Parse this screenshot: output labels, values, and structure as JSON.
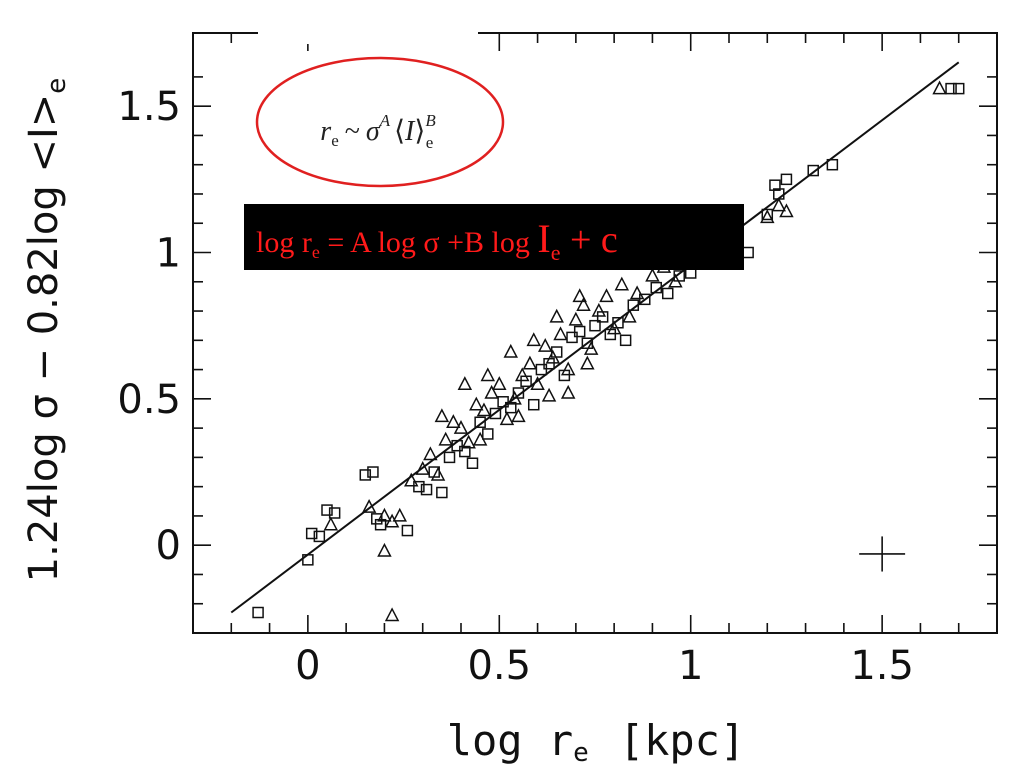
{
  "chart_data": {
    "type": "scatter",
    "title": "",
    "xlabel": "log r",
    "xlabel_sub": "e",
    "xlabel_unit": "[kpc]",
    "ylabel": "1.24log σ − 0.82log <I>",
    "ylabel_sub": "e",
    "xlim": [
      -0.3,
      1.8
    ],
    "ylim": [
      -0.3,
      1.75
    ],
    "grid": false,
    "x_ticks": [
      {
        "value": 0,
        "label": "0"
      },
      {
        "value": 0.5,
        "label": "0.5"
      },
      {
        "value": 1,
        "label": "1"
      },
      {
        "value": 1.5,
        "label": "1.5"
      }
    ],
    "y_ticks": [
      {
        "value": 0,
        "label": "0"
      },
      {
        "value": 0.5,
        "label": "0.5"
      },
      {
        "value": 1,
        "label": "1"
      },
      {
        "value": 1.5,
        "label": "1.5"
      }
    ],
    "fit_line": {
      "x": [
        -0.2,
        1.7
      ],
      "y": [
        -0.23,
        1.65
      ]
    },
    "error_cross": {
      "x": 1.5,
      "y": -0.03,
      "dx": 0.06,
      "dy": 0.06
    },
    "series": [
      {
        "marker": "square",
        "points": [
          [
            -0.13,
            -0.23
          ],
          [
            0.0,
            -0.05
          ],
          [
            0.01,
            0.04
          ],
          [
            0.03,
            0.03
          ],
          [
            0.05,
            0.12
          ],
          [
            0.07,
            0.11
          ],
          [
            0.15,
            0.24
          ],
          [
            0.17,
            0.25
          ],
          [
            0.18,
            0.09
          ],
          [
            0.19,
            0.07
          ],
          [
            0.26,
            0.05
          ],
          [
            0.29,
            0.2
          ],
          [
            0.31,
            0.19
          ],
          [
            0.33,
            0.25
          ],
          [
            0.35,
            0.18
          ],
          [
            0.37,
            0.3
          ],
          [
            0.39,
            0.34
          ],
          [
            0.41,
            0.32
          ],
          [
            0.43,
            0.28
          ],
          [
            0.45,
            0.42
          ],
          [
            0.47,
            0.38
          ],
          [
            0.49,
            0.45
          ],
          [
            0.51,
            0.49
          ],
          [
            0.53,
            0.47
          ],
          [
            0.55,
            0.52
          ],
          [
            0.57,
            0.56
          ],
          [
            0.59,
            0.48
          ],
          [
            0.61,
            0.6
          ],
          [
            0.63,
            0.62
          ],
          [
            0.65,
            0.66
          ],
          [
            0.67,
            0.58
          ],
          [
            0.69,
            0.71
          ],
          [
            0.71,
            0.73
          ],
          [
            0.73,
            0.69
          ],
          [
            0.75,
            0.75
          ],
          [
            0.77,
            0.78
          ],
          [
            0.79,
            0.72
          ],
          [
            0.81,
            0.76
          ],
          [
            0.83,
            0.7
          ],
          [
            0.85,
            0.82
          ],
          [
            0.88,
            0.84
          ],
          [
            0.91,
            0.88
          ],
          [
            0.94,
            0.86
          ],
          [
            0.97,
            0.92
          ],
          [
            1.0,
            0.93
          ],
          [
            1.05,
            0.96
          ],
          [
            1.12,
            0.98
          ],
          [
            1.15,
            1.0
          ],
          [
            1.2,
            1.13
          ],
          [
            1.22,
            1.23
          ],
          [
            1.23,
            1.2
          ],
          [
            1.25,
            1.25
          ],
          [
            1.32,
            1.28
          ],
          [
            1.37,
            1.3
          ],
          [
            1.68,
            1.56
          ],
          [
            1.7,
            1.56
          ]
        ]
      },
      {
        "marker": "triangle",
        "points": [
          [
            0.06,
            0.07
          ],
          [
            0.16,
            0.13
          ],
          [
            0.2,
            0.1
          ],
          [
            0.22,
            0.08
          ],
          [
            0.24,
            0.1
          ],
          [
            0.2,
            -0.02
          ],
          [
            0.22,
            -0.24
          ],
          [
            0.27,
            0.22
          ],
          [
            0.3,
            0.26
          ],
          [
            0.32,
            0.31
          ],
          [
            0.34,
            0.24
          ],
          [
            0.36,
            0.36
          ],
          [
            0.38,
            0.42
          ],
          [
            0.4,
            0.4
          ],
          [
            0.42,
            0.35
          ],
          [
            0.44,
            0.48
          ],
          [
            0.46,
            0.46
          ],
          [
            0.48,
            0.52
          ],
          [
            0.5,
            0.55
          ],
          [
            0.52,
            0.43
          ],
          [
            0.54,
            0.5
          ],
          [
            0.56,
            0.58
          ],
          [
            0.58,
            0.62
          ],
          [
            0.6,
            0.55
          ],
          [
            0.62,
            0.68
          ],
          [
            0.64,
            0.64
          ],
          [
            0.66,
            0.72
          ],
          [
            0.68,
            0.6
          ],
          [
            0.7,
            0.77
          ],
          [
            0.72,
            0.82
          ],
          [
            0.74,
            0.67
          ],
          [
            0.76,
            0.8
          ],
          [
            0.78,
            0.85
          ],
          [
            0.8,
            0.74
          ],
          [
            0.82,
            0.89
          ],
          [
            0.84,
            0.78
          ],
          [
            0.86,
            0.86
          ],
          [
            0.9,
            0.92
          ],
          [
            0.93,
            0.95
          ],
          [
            0.96,
            0.9
          ],
          [
            0.99,
            0.98
          ],
          [
            1.02,
            0.96
          ],
          [
            1.2,
            1.12
          ],
          [
            1.23,
            1.16
          ],
          [
            1.25,
            1.14
          ],
          [
            1.65,
            1.56
          ],
          [
            0.35,
            0.44
          ],
          [
            0.41,
            0.55
          ],
          [
            0.47,
            0.58
          ],
          [
            0.53,
            0.66
          ],
          [
            0.59,
            0.7
          ],
          [
            0.65,
            0.78
          ],
          [
            0.71,
            0.85
          ],
          [
            0.45,
            0.36
          ],
          [
            0.55,
            0.44
          ],
          [
            0.63,
            0.51
          ],
          [
            0.68,
            0.52
          ],
          [
            0.73,
            0.62
          ]
        ]
      }
    ],
    "annotations": {
      "formula_oval": {
        "lhs": "r",
        "lhs_sub": "e",
        "sim": "~",
        "sigma": "σ",
        "sigma_exp": "A",
        "bracket_left": "⟨",
        "I": "I",
        "bracket_right": "⟩",
        "I_sub": "e",
        "I_exp": "B"
      },
      "formula_box": {
        "part1": "log r",
        "sub1": "e",
        "part2": " = A log σ +B log ",
        "part3": "I",
        "sub2": "e",
        "part4": " + c"
      }
    },
    "colors": {
      "axis": "#111111",
      "data": "#111111",
      "oval": "#e02020",
      "box_bg": "#000000",
      "box_text": "#ff1a1a"
    }
  }
}
